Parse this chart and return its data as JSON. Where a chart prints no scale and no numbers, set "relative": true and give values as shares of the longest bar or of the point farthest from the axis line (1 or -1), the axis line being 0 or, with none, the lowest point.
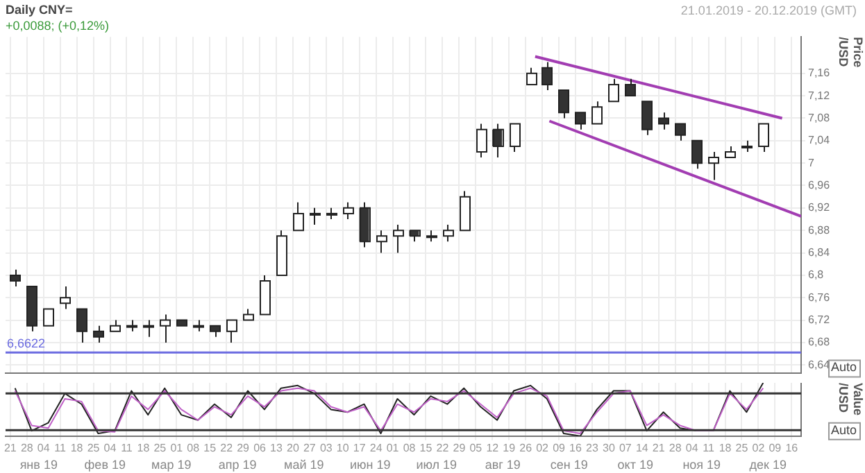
{
  "chart_data": [
    {
      "type": "candlestick",
      "title": "Daily CNY=",
      "subtitle": "+0,0088; (+0,12%)",
      "ylabel": "Price /USD",
      "x": [
        "2019-01-23",
        "2019-01-30",
        "2019-02-06",
        "2019-02-13",
        "2019-02-20",
        "2019-02-27",
        "2019-03-06",
        "2019-03-13",
        "2019-03-20",
        "2019-03-27",
        "2019-04-03",
        "2019-04-10",
        "2019-04-17",
        "2019-04-24",
        "2019-05-01",
        "2019-05-08",
        "2019-05-15",
        "2019-05-22",
        "2019-05-29",
        "2019-06-05",
        "2019-06-12",
        "2019-06-19",
        "2019-06-26",
        "2019-07-03",
        "2019-07-10",
        "2019-07-17",
        "2019-07-24",
        "2019-07-31",
        "2019-08-07",
        "2019-08-14",
        "2019-08-21",
        "2019-08-28",
        "2019-09-04",
        "2019-09-11",
        "2019-09-18",
        "2019-09-25",
        "2019-10-02",
        "2019-10-09",
        "2019-10-16",
        "2019-10-23",
        "2019-10-30",
        "2019-11-06",
        "2019-11-13",
        "2019-11-20",
        "2019-11-27",
        "2019-12-04"
      ],
      "ohlc": [
        [
          6.8,
          6.81,
          6.78,
          6.79
        ],
        [
          6.78,
          6.78,
          6.7,
          6.71
        ],
        [
          6.71,
          6.74,
          6.71,
          6.74
        ],
        [
          6.75,
          6.78,
          6.74,
          6.76
        ],
        [
          6.74,
          6.74,
          6.68,
          6.7
        ],
        [
          6.7,
          6.71,
          6.68,
          6.69
        ],
        [
          6.7,
          6.72,
          6.7,
          6.71
        ],
        [
          6.71,
          6.72,
          6.7,
          6.71
        ],
        [
          6.71,
          6.72,
          6.69,
          6.71
        ],
        [
          6.71,
          6.73,
          6.68,
          6.72
        ],
        [
          6.72,
          6.72,
          6.71,
          6.71
        ],
        [
          6.71,
          6.72,
          6.7,
          6.71
        ],
        [
          6.71,
          6.71,
          6.69,
          6.7
        ],
        [
          6.7,
          6.72,
          6.68,
          6.72
        ],
        [
          6.72,
          6.74,
          6.72,
          6.73
        ],
        [
          6.73,
          6.8,
          6.73,
          6.79
        ],
        [
          6.8,
          6.88,
          6.8,
          6.87
        ],
        [
          6.88,
          6.93,
          6.88,
          6.91
        ],
        [
          6.91,
          6.92,
          6.89,
          6.91
        ],
        [
          6.91,
          6.92,
          6.9,
          6.91
        ],
        [
          6.91,
          6.93,
          6.9,
          6.92
        ],
        [
          6.92,
          6.93,
          6.85,
          6.86
        ],
        [
          6.86,
          6.88,
          6.84,
          6.87
        ],
        [
          6.87,
          6.89,
          6.84,
          6.88
        ],
        [
          6.88,
          6.88,
          6.86,
          6.87
        ],
        [
          6.87,
          6.88,
          6.86,
          6.87
        ],
        [
          6.87,
          6.89,
          6.86,
          6.88
        ],
        [
          6.88,
          6.95,
          6.88,
          6.94
        ],
        [
          7.02,
          7.07,
          7.01,
          7.06
        ],
        [
          7.06,
          7.07,
          7.01,
          7.03
        ],
        [
          7.03,
          7.07,
          7.02,
          7.07
        ],
        [
          7.14,
          7.17,
          7.14,
          7.16
        ],
        [
          7.17,
          7.18,
          7.13,
          7.14
        ],
        [
          7.13,
          7.13,
          7.08,
          7.09
        ],
        [
          7.09,
          7.09,
          7.06,
          7.07
        ],
        [
          7.07,
          7.11,
          7.07,
          7.1
        ],
        [
          7.11,
          7.15,
          7.11,
          7.14
        ],
        [
          7.14,
          7.15,
          7.12,
          7.12
        ],
        [
          7.11,
          7.11,
          7.05,
          7.06
        ],
        [
          7.08,
          7.09,
          7.06,
          7.07
        ],
        [
          7.07,
          7.07,
          7.04,
          7.05
        ],
        [
          7.04,
          7.04,
          6.99,
          7
        ],
        [
          7,
          7.02,
          6.97,
          7.01
        ],
        [
          7.01,
          7.03,
          7.01,
          7.02
        ],
        [
          7.03,
          7.04,
          7.02,
          7.03
        ],
        [
          7.03,
          7.07,
          7.02,
          7.07
        ]
      ],
      "series": [
        {
          "type": "line",
          "color": "#a23db2",
          "x": [
            "2019-08-30",
            "2019-12-12"
          ],
          "values": [
            7.19,
            7.08
          ]
        },
        {
          "type": "line",
          "color": "#a23db2",
          "x": [
            "2019-09-05",
            "2019-12-20"
          ],
          "values": [
            7.075,
            6.905
          ]
        }
      ],
      "xlim": [
        "2019-01-19",
        "2019-12-20"
      ],
      "xticks": [
        {
          "value": "2019-01-21",
          "label": null
        },
        {
          "value": "2019-01-28",
          "label": null
        },
        {
          "value": "2019-02-04",
          "label": null
        },
        {
          "value": "2019-02-11",
          "label": null
        },
        {
          "value": "2019-02-18",
          "label": null
        },
        {
          "value": "2019-02-25",
          "label": null
        },
        {
          "value": "2019-03-04",
          "label": null
        },
        {
          "value": "2019-03-11",
          "label": null
        },
        {
          "value": "2019-03-18",
          "label": null
        },
        {
          "value": "2019-03-25",
          "label": null
        },
        {
          "value": "2019-04-01",
          "label": null
        },
        {
          "value": "2019-04-08",
          "label": null
        },
        {
          "value": "2019-04-15",
          "label": null
        },
        {
          "value": "2019-04-22",
          "label": null
        },
        {
          "value": "2019-04-29",
          "label": null
        },
        {
          "value": "2019-05-06",
          "label": null
        },
        {
          "value": "2019-05-13",
          "label": null
        },
        {
          "value": "2019-05-20",
          "label": null
        },
        {
          "value": "2019-05-27",
          "label": null
        },
        {
          "value": "2019-06-03",
          "label": null
        },
        {
          "value": "2019-06-10",
          "label": null
        },
        {
          "value": "2019-06-17",
          "label": null
        },
        {
          "value": "2019-06-24",
          "label": null
        },
        {
          "value": "2019-07-01",
          "label": null
        },
        {
          "value": "2019-07-08",
          "label": null
        },
        {
          "value": "2019-07-15",
          "label": null
        },
        {
          "value": "2019-07-22",
          "label": null
        },
        {
          "value": "2019-07-29",
          "label": null
        },
        {
          "value": "2019-08-05",
          "label": null
        },
        {
          "value": "2019-08-12",
          "label": null
        },
        {
          "value": "2019-08-19",
          "label": null
        },
        {
          "value": "2019-08-26",
          "label": null
        },
        {
          "value": "2019-09-02",
          "label": null
        },
        {
          "value": "2019-09-09",
          "label": null
        },
        {
          "value": "2019-09-16",
          "label": null
        },
        {
          "value": "2019-09-23",
          "label": null
        },
        {
          "value": "2019-09-30",
          "label": null
        },
        {
          "value": "2019-10-07",
          "label": null
        },
        {
          "value": "2019-10-14",
          "label": null
        },
        {
          "value": "2019-10-21",
          "label": null
        },
        {
          "value": "2019-10-28",
          "label": null
        },
        {
          "value": "2019-11-04",
          "label": null
        },
        {
          "value": "2019-11-11",
          "label": null
        },
        {
          "value": "2019-11-18",
          "label": null
        },
        {
          "value": "2019-11-25",
          "label": null
        },
        {
          "value": "2019-12-02",
          "label": null
        },
        {
          "value": "2019-12-09",
          "label": null
        },
        {
          "value": "2019-12-16",
          "label": null
        }
      ],
      "ylim": [
        6.625,
        7.225
      ],
      "yticks": [
        {
          "value": 6.64,
          "label": "6,64"
        },
        {
          "value": 6.68,
          "label": "6,68"
        },
        {
          "value": 6.72,
          "label": "6,72"
        },
        {
          "value": 6.76,
          "label": "6,76"
        },
        {
          "value": 6.8,
          "label": "6,8"
        },
        {
          "value": 6.84,
          "label": "6,84"
        },
        {
          "value": 6.88,
          "label": "6,88"
        },
        {
          "value": 6.92,
          "label": "6,92"
        },
        {
          "value": 6.96,
          "label": "6,96"
        },
        {
          "value": 7,
          "label": "7"
        },
        {
          "value": 7.04,
          "label": "7,04"
        },
        {
          "value": 7.08,
          "label": "7,08"
        },
        {
          "value": 7.12,
          "label": "7,12"
        },
        {
          "value": 7.16,
          "label": "7,16"
        }
      ],
      "ref_lines": [
        {
          "axis": "y",
          "value": 6.6622,
          "label": "6,6622",
          "color": "#6a6ae0"
        }
      ],
      "grid": true,
      "tick_labels": "y",
      "annotations": [
        "21.01.2019 - 20.12.2019 (GMT)",
        "Auto"
      ]
    },
    {
      "type": "line",
      "relative": true,
      "ylabel": "Value /USD",
      "x": [
        "2019-01-23",
        "2019-01-30",
        "2019-02-06",
        "2019-02-13",
        "2019-02-20",
        "2019-02-27",
        "2019-03-06",
        "2019-03-13",
        "2019-03-20",
        "2019-03-27",
        "2019-04-03",
        "2019-04-10",
        "2019-04-17",
        "2019-04-24",
        "2019-05-01",
        "2019-05-08",
        "2019-05-15",
        "2019-05-22",
        "2019-05-29",
        "2019-06-05",
        "2019-06-12",
        "2019-06-19",
        "2019-06-26",
        "2019-07-03",
        "2019-07-10",
        "2019-07-17",
        "2019-07-24",
        "2019-07-31",
        "2019-08-07",
        "2019-08-14",
        "2019-08-21",
        "2019-08-28",
        "2019-09-04",
        "2019-09-11",
        "2019-09-18",
        "2019-09-25",
        "2019-10-02",
        "2019-10-09",
        "2019-10-16",
        "2019-10-23",
        "2019-10-30",
        "2019-11-06",
        "2019-11-13",
        "2019-11-20",
        "2019-11-27",
        "2019-12-04"
      ],
      "series": [
        {
          "color": "#c060c8",
          "values": [
            0.85,
            0.2,
            0.15,
            0.7,
            0.65,
            0.1,
            0.08,
            0.75,
            0.5,
            0.85,
            0.5,
            0.3,
            0.55,
            0.4,
            0.75,
            0.55,
            0.85,
            0.9,
            0.85,
            0.55,
            0.45,
            0.55,
            0.1,
            0.6,
            0.45,
            0.7,
            0.65,
            0.85,
            0.6,
            0.35,
            0.8,
            0.9,
            0.75,
            0.1,
            0.05,
            0.45,
            0.8,
            0.85,
            0.2,
            0.4,
            0.2,
            0.1,
            0.1,
            0.8,
            0.5,
            0.9
          ]
        },
        {
          "color": "#222222",
          "values": [
            0.9,
            0.1,
            0.25,
            0.8,
            0.6,
            0.05,
            0.1,
            0.85,
            0.4,
            0.9,
            0.4,
            0.3,
            0.6,
            0.35,
            0.85,
            0.5,
            0.9,
            0.95,
            0.8,
            0.5,
            0.45,
            0.6,
            0.05,
            0.7,
            0.4,
            0.75,
            0.6,
            0.9,
            0.55,
            0.3,
            0.85,
            0.95,
            0.7,
            0.05,
            0.0,
            0.5,
            0.85,
            0.85,
            0.1,
            0.45,
            0.15,
            0.1,
            0.1,
            0.85,
            0.45,
            1.0
          ]
        }
      ],
      "xlim": [
        "2019-01-19",
        "2019-12-20"
      ],
      "xticks": [
        {
          "value": "2019-01-21",
          "label": "21"
        },
        {
          "value": "2019-01-28",
          "label": "28"
        },
        {
          "value": "2019-02-04",
          "label": "04"
        },
        {
          "value": "2019-02-11",
          "label": "11"
        },
        {
          "value": "2019-02-18",
          "label": "18"
        },
        {
          "value": "2019-02-25",
          "label": "25"
        },
        {
          "value": "2019-03-04",
          "label": "04"
        },
        {
          "value": "2019-03-11",
          "label": "11"
        },
        {
          "value": "2019-03-18",
          "label": "18"
        },
        {
          "value": "2019-03-25",
          "label": "25"
        },
        {
          "value": "2019-04-01",
          "label": "01"
        },
        {
          "value": "2019-04-08",
          "label": "08"
        },
        {
          "value": "2019-04-15",
          "label": "15"
        },
        {
          "value": "2019-04-22",
          "label": "22"
        },
        {
          "value": "2019-04-29",
          "label": "29"
        },
        {
          "value": "2019-05-06",
          "label": "06"
        },
        {
          "value": "2019-05-13",
          "label": "13"
        },
        {
          "value": "2019-05-20",
          "label": "20"
        },
        {
          "value": "2019-05-27",
          "label": "27"
        },
        {
          "value": "2019-06-03",
          "label": "03"
        },
        {
          "value": "2019-06-10",
          "label": "10"
        },
        {
          "value": "2019-06-17",
          "label": "17"
        },
        {
          "value": "2019-06-24",
          "label": "24"
        },
        {
          "value": "2019-07-01",
          "label": "01"
        },
        {
          "value": "2019-07-08",
          "label": "08"
        },
        {
          "value": "2019-07-15",
          "label": "15"
        },
        {
          "value": "2019-07-22",
          "label": "22"
        },
        {
          "value": "2019-07-29",
          "label": "29"
        },
        {
          "value": "2019-08-05",
          "label": "05"
        },
        {
          "value": "2019-08-12",
          "label": "12"
        },
        {
          "value": "2019-08-19",
          "label": "19"
        },
        {
          "value": "2019-08-26",
          "label": "26"
        },
        {
          "value": "2019-09-02",
          "label": "02"
        },
        {
          "value": "2019-09-09",
          "label": "09"
        },
        {
          "value": "2019-09-16",
          "label": "16"
        },
        {
          "value": "2019-09-23",
          "label": "23"
        },
        {
          "value": "2019-09-30",
          "label": "30"
        },
        {
          "value": "2019-10-07",
          "label": "07"
        },
        {
          "value": "2019-10-14",
          "label": "14"
        },
        {
          "value": "2019-10-21",
          "label": "21"
        },
        {
          "value": "2019-10-28",
          "label": "28"
        },
        {
          "value": "2019-11-04",
          "label": "04"
        },
        {
          "value": "2019-11-11",
          "label": "11"
        },
        {
          "value": "2019-11-18",
          "label": "18"
        },
        {
          "value": "2019-11-25",
          "label": "25"
        },
        {
          "value": "2019-12-02",
          "label": "02"
        },
        {
          "value": "2019-12-09",
          "label": "09"
        },
        {
          "value": "2019-12-16",
          "label": "16"
        }
      ],
      "ref_lines": [
        {
          "axis": "y",
          "value": 0.8,
          "color": "#333333"
        },
        {
          "axis": "y",
          "value": 0.11,
          "color": "#333333"
        }
      ],
      "grid": true,
      "tick_labels": "x",
      "annotations": [
        "янв 19",
        "фев 19",
        "мар 19",
        "апр 19",
        "май 19",
        "июн 19",
        "июл 19",
        "авг 19",
        "сен 19",
        "окт 19",
        "ноя 19",
        "дек 19",
        "Auto"
      ]
    }
  ]
}
